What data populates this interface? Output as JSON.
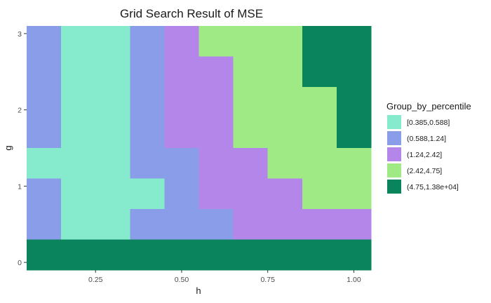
{
  "chart_data": {
    "type": "heatmap",
    "title": "Grid Search Result of MSE",
    "xlabel": "h",
    "ylabel": "g",
    "xlim": [
      0.05,
      1.05
    ],
    "ylim": [
      -0.1,
      3.1
    ],
    "x_ticks": [
      {
        "value": 0.25,
        "label": "0.25"
      },
      {
        "value": 0.5,
        "label": "0.50"
      },
      {
        "value": 0.75,
        "label": "0.75"
      },
      {
        "value": 1.0,
        "label": "1.00"
      }
    ],
    "y_ticks": [
      {
        "value": 0,
        "label": "0"
      },
      {
        "value": 1,
        "label": "1"
      },
      {
        "value": 2,
        "label": "2"
      },
      {
        "value": 3,
        "label": "3"
      }
    ],
    "x": [
      0.1,
      0.2,
      0.3,
      0.4,
      0.5,
      0.6,
      0.7,
      0.8,
      0.9,
      1.0
    ],
    "y": [
      0.1,
      0.5,
      0.9,
      1.3,
      1.7,
      2.1,
      2.5,
      2.9
    ],
    "cell_width": 0.1,
    "cell_height": 0.4,
    "grid_rows_top_to_bottom": [
      [
        1,
        0,
        0,
        1,
        2,
        3,
        3,
        3,
        4,
        4
      ],
      [
        1,
        0,
        0,
        1,
        2,
        2,
        3,
        3,
        4,
        4
      ],
      [
        1,
        0,
        0,
        1,
        2,
        2,
        3,
        3,
        3,
        4
      ],
      [
        1,
        0,
        0,
        1,
        2,
        2,
        3,
        3,
        3,
        4
      ],
      [
        0,
        0,
        0,
        1,
        1,
        2,
        2,
        3,
        3,
        3
      ],
      [
        1,
        0,
        0,
        0,
        1,
        2,
        2,
        2,
        3,
        3
      ],
      [
        1,
        0,
        0,
        1,
        1,
        1,
        2,
        2,
        2,
        2
      ],
      [
        4,
        4,
        4,
        4,
        4,
        4,
        4,
        4,
        4,
        4
      ]
    ],
    "legend": {
      "title": "Group_by_percentile",
      "position": "right",
      "entries": [
        {
          "label": "[0.385,0.588]",
          "color": "#86EACC"
        },
        {
          "label": "(0.588,1.24]",
          "color": "#8A9DE8"
        },
        {
          "label": "(1.24,2.42]",
          "color": "#B586EA"
        },
        {
          "label": "(2.42,4.75]",
          "color": "#A0EA86"
        },
        {
          "label": "(4.75,1.38e+04]",
          "color": "#09845C"
        }
      ]
    },
    "panel_background": "#EBEBEB",
    "grid_major_color": "#FFFFFF"
  }
}
